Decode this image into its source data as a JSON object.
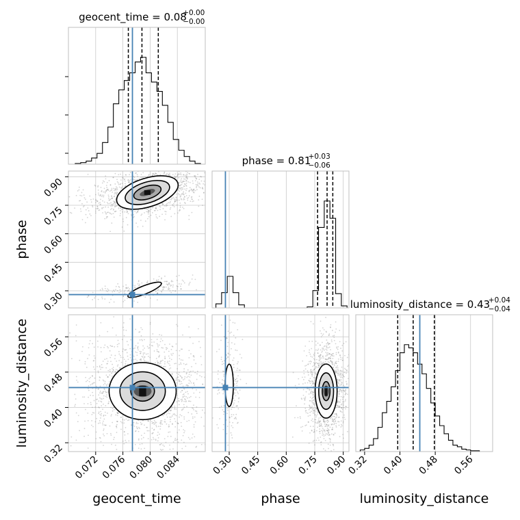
{
  "chart_data": {
    "type": "corner",
    "params": [
      {
        "name": "geocent_time",
        "title_main": "geocent_time = 0.08",
        "title_plus": "+0.00",
        "title_minus": "−0.00",
        "range": [
          0.068,
          0.0881
        ],
        "ticks": [
          "0.072",
          "0.076",
          "0.080",
          "0.084"
        ],
        "tick_values": [
          0.072,
          0.076,
          0.08,
          0.084
        ],
        "truth": 0.0774,
        "quantiles": [
          0.0768,
          0.0788,
          0.0812
        ]
      },
      {
        "name": "phase",
        "title_main": "phase = 0.81",
        "title_plus": "+0.03",
        "title_minus": "−0.06",
        "range": [
          0.21,
          0.93
        ],
        "ticks": [
          "0.30",
          "0.45",
          "0.60",
          "0.75",
          "0.90"
        ],
        "tick_values": [
          0.3,
          0.45,
          0.6,
          0.75,
          0.9
        ],
        "truth": 0.28,
        "quantiles": [
          0.765,
          0.815,
          0.845
        ]
      },
      {
        "name": "luminosity_distance",
        "title_main": "luminosity_distance = 0.43",
        "title_plus": "+0.04",
        "title_minus": "−0.04",
        "range": [
          0.3,
          0.61
        ],
        "ticks": [
          "0.32",
          "0.40",
          "0.48",
          "0.56"
        ],
        "tick_values": [
          0.32,
          0.4,
          0.48,
          0.56
        ],
        "truth": 0.445,
        "quantiles": [
          0.395,
          0.43,
          0.478
        ]
      }
    ],
    "histograms": [
      {
        "param": "geocent_time",
        "bin_edges": [
          0.069,
          0.0698,
          0.0706,
          0.0714,
          0.0722,
          0.073,
          0.0738,
          0.0746,
          0.0754,
          0.0762,
          0.077,
          0.0778,
          0.0786,
          0.0794,
          0.0802,
          0.081,
          0.0818,
          0.0826,
          0.0834,
          0.0842,
          0.085,
          0.0858,
          0.0866,
          0.0874
        ],
        "counts": [
          1,
          2,
          4,
          8,
          14,
          28,
          48,
          78,
          96,
          108,
          118,
          132,
          138,
          118,
          106,
          94,
          76,
          54,
          32,
          18,
          10,
          4,
          1
        ]
      },
      {
        "param": "phase",
        "bin_edges": [
          0.23,
          0.26,
          0.29,
          0.32,
          0.35,
          0.38,
          0.41,
          0.44,
          0.47,
          0.5,
          0.53,
          0.56,
          0.59,
          0.62,
          0.65,
          0.68,
          0.71,
          0.74,
          0.77,
          0.8,
          0.83,
          0.86,
          0.89,
          0.92
        ],
        "counts": [
          8,
          30,
          62,
          30,
          6,
          0,
          0,
          0,
          0,
          0,
          0,
          0,
          0,
          0,
          0,
          0,
          2,
          34,
          158,
          210,
          176,
          28,
          4
        ]
      },
      {
        "param": "luminosity_distance",
        "bin_edges": [
          0.3,
          0.31,
          0.32,
          0.33,
          0.34,
          0.35,
          0.36,
          0.37,
          0.38,
          0.39,
          0.4,
          0.41,
          0.42,
          0.43,
          0.44,
          0.45,
          0.46,
          0.47,
          0.48,
          0.49,
          0.5,
          0.51,
          0.52,
          0.53,
          0.54,
          0.55,
          0.56,
          0.57,
          0.58,
          0.59,
          0.6
        ],
        "counts": [
          0,
          2,
          4,
          8,
          16,
          30,
          48,
          62,
          80,
          100,
          122,
          132,
          128,
          122,
          108,
          96,
          78,
          60,
          44,
          32,
          22,
          14,
          8,
          6,
          3,
          2,
          1,
          1,
          0,
          0
        ]
      }
    ],
    "pairs": [
      {
        "x": "geocent_time",
        "y": "phase",
        "modes": [
          {
            "center": [
              0.0796,
              0.817
            ],
            "sigma": [
              0.0026,
              0.042
            ],
            "rho": 0.35,
            "weight": 0.85,
            "levels": [
              0.8,
              1.3,
              1.8
            ]
          },
          {
            "center": [
              0.0792,
              0.305
            ],
            "sigma": [
              0.0022,
              0.018
            ],
            "rho": 0.45,
            "weight": 0.15,
            "levels": [
              1.2
            ]
          }
        ]
      },
      {
        "x": "geocent_time",
        "y": "luminosity_distance",
        "modes": [
          {
            "center": [
              0.0789,
              0.437
            ],
            "sigma": [
              0.0029,
              0.038
            ],
            "rho": 0.0,
            "weight": 1.0,
            "levels": [
              0.6,
              1.15,
              1.7
            ]
          }
        ]
      },
      {
        "x": "phase",
        "y": "luminosity_distance",
        "modes": [
          {
            "center": [
              0.81,
              0.437
            ],
            "sigma": [
              0.034,
              0.036
            ],
            "rho": 0.0,
            "weight": 0.85,
            "levels": [
              0.6,
              1.15,
              1.7
            ]
          },
          {
            "center": [
              0.3,
              0.45
            ],
            "sigma": [
              0.018,
              0.04
            ],
            "rho": 0.0,
            "weight": 0.15,
            "levels": [
              1.2
            ]
          }
        ]
      }
    ],
    "colors": {
      "truth": "#4682b4",
      "hist": "#000000",
      "grid": "#c8c8c8",
      "points": "#808080"
    }
  }
}
